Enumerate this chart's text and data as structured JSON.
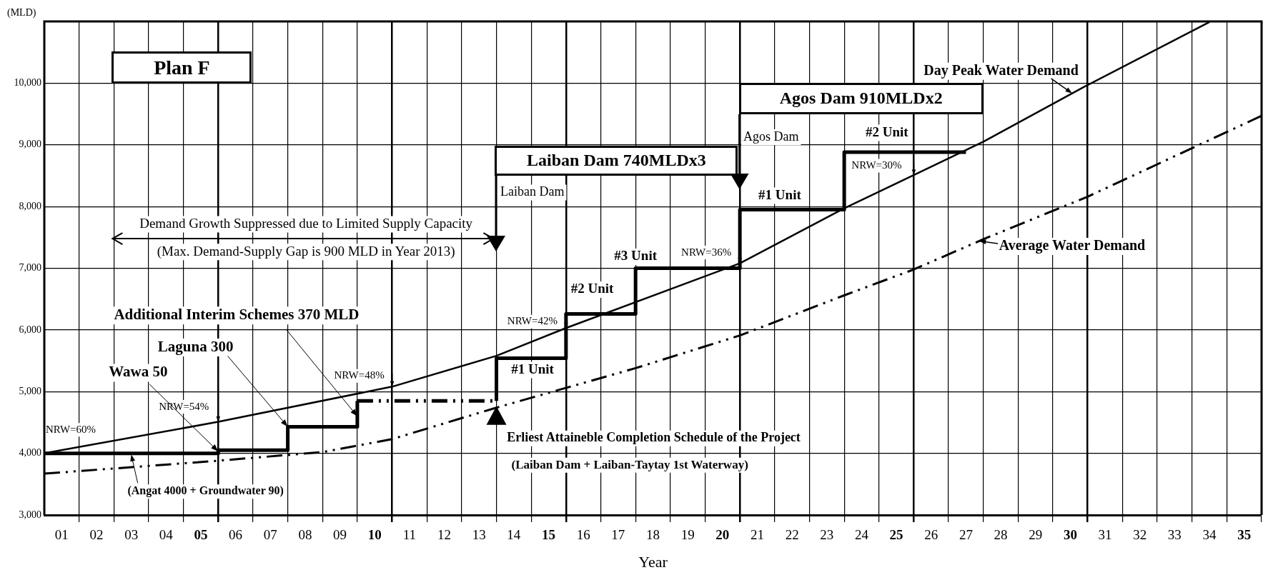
{
  "chart_data": {
    "type": "line",
    "title": "Plan F",
    "xlabel": "Year",
    "ylabel": "(MLD)",
    "xlim": [
      0.5,
      35.5
    ],
    "xticks": [
      {
        "value": 1,
        "label": "01"
      },
      {
        "value": 2,
        "label": "02"
      },
      {
        "value": 3,
        "label": "03"
      },
      {
        "value": 4,
        "label": "04"
      },
      {
        "value": 5,
        "label": "05"
      },
      {
        "value": 6,
        "label": "06"
      },
      {
        "value": 7,
        "label": "07"
      },
      {
        "value": 8,
        "label": "08"
      },
      {
        "value": 9,
        "label": "09"
      },
      {
        "value": 10,
        "label": "10"
      },
      {
        "value": 11,
        "label": "11"
      },
      {
        "value": 12,
        "label": "12"
      },
      {
        "value": 13,
        "label": "13"
      },
      {
        "value": 14,
        "label": "14"
      },
      {
        "value": 15,
        "label": "15"
      },
      {
        "value": 16,
        "label": "16"
      },
      {
        "value": 17,
        "label": "17"
      },
      {
        "value": 18,
        "label": "18"
      },
      {
        "value": 19,
        "label": "19"
      },
      {
        "value": 20,
        "label": "20"
      },
      {
        "value": 21,
        "label": "21"
      },
      {
        "value": 22,
        "label": "22"
      },
      {
        "value": 23,
        "label": "23"
      },
      {
        "value": 24,
        "label": "24"
      },
      {
        "value": 25,
        "label": "25"
      },
      {
        "value": 26,
        "label": "26"
      },
      {
        "value": 27,
        "label": "27"
      },
      {
        "value": 28,
        "label": "28"
      },
      {
        "value": 29,
        "label": "29"
      },
      {
        "value": 30,
        "label": "30"
      },
      {
        "value": 31,
        "label": "31"
      },
      {
        "value": 32,
        "label": "32"
      },
      {
        "value": 33,
        "label": "33"
      },
      {
        "value": 34,
        "label": "34"
      },
      {
        "value": 35,
        "label": "35"
      }
    ],
    "ylim": [
      3000,
      11000
    ],
    "yticks": [
      {
        "value": 3000,
        "label": "3,000"
      },
      {
        "value": 4000,
        "label": "4,000"
      },
      {
        "value": 5000,
        "label": "5,000"
      },
      {
        "value": 6000,
        "label": "6,000"
      },
      {
        "value": 7000,
        "label": "7,000"
      },
      {
        "value": 8000,
        "label": "8,000"
      },
      {
        "value": 9000,
        "label": "9,000"
      },
      {
        "value": 10000,
        "label": "10,000"
      }
    ],
    "grid": true,
    "series": [
      {
        "name": "Day Peak Water Demand",
        "color": "#000000",
        "line_style": "solid",
        "x": [
          0.5,
          5.5,
          10.5,
          13.5,
          15.5,
          20.5,
          23.5,
          27.5,
          30.5,
          34.0
        ],
        "values": [
          4000,
          4510,
          5080,
          5580,
          6030,
          7080,
          7970,
          9050,
          9970,
          10990
        ]
      },
      {
        "name": "Average Water Demand",
        "color": "#000000",
        "line_style": "dashed",
        "x": [
          0.5,
          5.5,
          8.5,
          10.5,
          13.5,
          17.5,
          20.5,
          23.5,
          25.5,
          27.5,
          30.5,
          35.5
        ],
        "values": [
          3670,
          3880,
          4020,
          4230,
          4740,
          5380,
          5910,
          6560,
          6980,
          7470,
          8160,
          9470
        ]
      },
      {
        "type": "step",
        "color": "#000000",
        "line_style": "solid",
        "x": [
          0.5,
          5.5,
          7.5,
          9.5
        ],
        "values": [
          4000,
          4050,
          4430,
          4850
        ]
      },
      {
        "type": "step",
        "color": "#000000",
        "line_style": "dashed",
        "x": [
          9.5,
          13.5
        ],
        "values": [
          4850,
          4850
        ]
      },
      {
        "type": "step",
        "color": "#000000",
        "line_style": "solid",
        "x": [
          13.5,
          13.5,
          15.5,
          17.5,
          20.5,
          23.5,
          27.0
        ],
        "values": [
          4850,
          5540,
          6260,
          7000,
          7950,
          8880,
          8880
        ]
      }
    ],
    "annotations": [
      "Laiban Dam 740MLDx3",
      "Agos Dam 910MLDx2",
      "Laiban Dam",
      "Agos Dam",
      "Demand Growth Suppressed due to Limited Supply Capacity",
      "(Max. Demand-Supply Gap is 900 MLD in Year 2013)",
      {
        "text": "Additional Interim Schemes 370 MLD",
        "x": 9.5,
        "y": 4600
      },
      {
        "text": "Laguna 300",
        "x": 7.5,
        "y": 4430
      },
      {
        "text": "Wawa 50",
        "x": 5.5,
        "y": 4030
      },
      {
        "text": "(Angat 4000 + Groundwater 90)",
        "x": 3.0,
        "y": 3980
      },
      {
        "text": "NRW=60%",
        "x": 0.5,
        "y": 4000
      },
      {
        "text": "NRW=54%",
        "x": 5.5,
        "y": 4510
      },
      {
        "text": "NRW=48%",
        "x": 10.5,
        "y": 5080
      },
      {
        "text": "NRW=42%",
        "x": 15.5,
        "y": 6030
      },
      {
        "text": "NRW=36%",
        "x": 20.5,
        "y": 7080
      },
      {
        "text": "NRW=30%",
        "x": 25.5,
        "y": 8510
      },
      "#1 Unit",
      {
        "text": "#2 Unit",
        "x": 16.5,
        "y": 6260
      },
      {
        "text": "#3 Unit",
        "x": 17.5,
        "y": 7000
      },
      "#1 Unit",
      {
        "text": "#2 Unit",
        "x": 24.5,
        "y": 8880
      },
      {
        "text": "Erliest Attaineble Completion Schedule of the Project",
        "x": 13.5,
        "y": 4740
      },
      "(Laiban Dam + Laiban-Taytay 1st Waterway)"
    ]
  }
}
